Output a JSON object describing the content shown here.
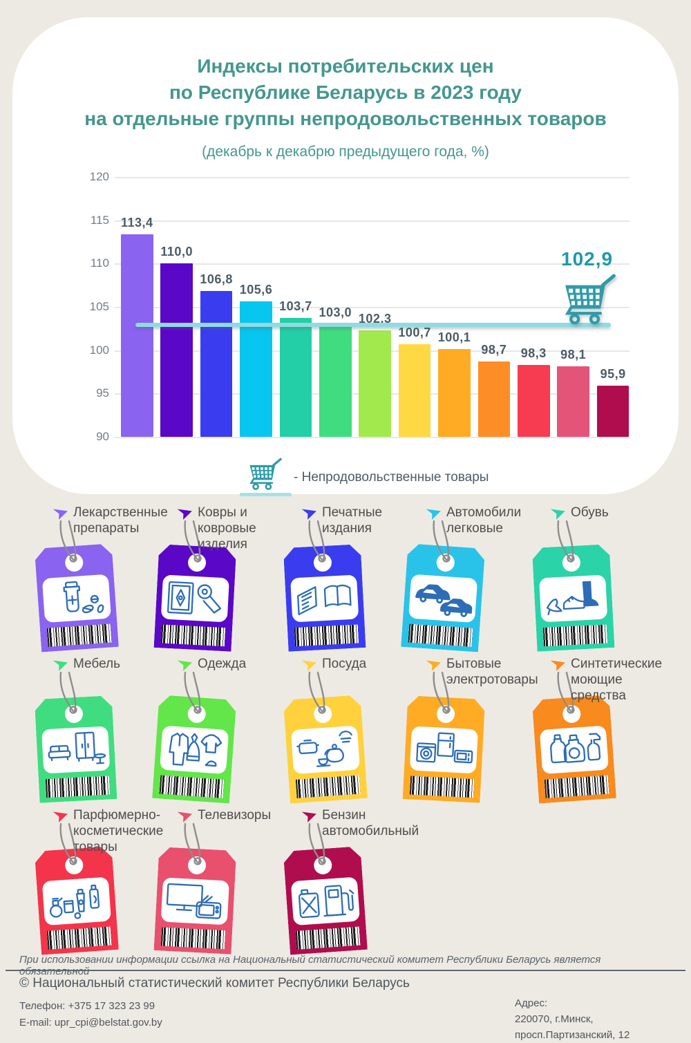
{
  "title": {
    "lines": [
      "Индексы потребительских цен",
      "по Республике Беларусь в 2023 году",
      "на отдельные группы непродовольственных товаров"
    ],
    "subtitle": "(декабрь к декабрю предыдущего года, %)"
  },
  "colors": {
    "background": "#edeae3",
    "panel": "#ffffff",
    "title_teal": "#43978f",
    "value_label_gray": "#4c5b66",
    "tick_gray": "#737d85",
    "reference_line": "#8edce2",
    "reference_label": "#1d9aaa",
    "cart_teal": "#2e9ba8",
    "icon_blue": "#2d6db5"
  },
  "chart_data": {
    "type": "bar",
    "title": "Индексы потребительских цен по Республике Беларусь в 2023 году на отдельные группы непродовольственных товаров",
    "subtitle": "(декабрь к декабрю предыдущего года, %)",
    "categories": [
      "Лекарственные препараты",
      "Ковры и ковровые изделия",
      "Печатные издания",
      "Автомобили легковые",
      "Обувь",
      "Мебель",
      "Одежда",
      "Посуда",
      "Бытовые электротовары",
      "Синтетические моющие средства",
      "Парфюмерно-косметические товары",
      "Телевизоры",
      "Бензин автомобильный"
    ],
    "values": [
      113.4,
      110.0,
      106.8,
      105.6,
      103.7,
      103.0,
      102.3,
      100.7,
      100.1,
      98.7,
      98.3,
      98.1,
      95.9
    ],
    "value_labels": [
      "113,4",
      "110,0",
      "106,8",
      "105,6",
      "103,7",
      "103,0",
      "102,3",
      "100,7",
      "100,1",
      "98,7",
      "98,3",
      "98,1",
      "95,9"
    ],
    "bar_colors": [
      "#8a63f0",
      "#5a07c8",
      "#3a3cf0",
      "#07c6f0",
      "#22cfa6",
      "#3fdd80",
      "#a2e94e",
      "#ffd944",
      "#ffab24",
      "#fd8d27",
      "#f73b50",
      "#e45479",
      "#b00d4e"
    ],
    "y_ticks": [
      120,
      115,
      110,
      105,
      100,
      95,
      90
    ],
    "ylim": [
      90,
      120
    ],
    "grid": true,
    "reference_line": {
      "value": 102.9,
      "label": "102,9"
    },
    "legend": {
      "icon": "shopping-cart-icon",
      "text": "- Непродовольственные товары",
      "position": "below-chart"
    }
  },
  "tags": [
    {
      "label": "Лекарственные препараты",
      "color": "#8a63f0",
      "icon": "medicine-icon"
    },
    {
      "label": "Ковры и ковровые изделия",
      "color": "#5a07c8",
      "icon": "carpet-icon"
    },
    {
      "label": "Печатные издания",
      "color": "#3a3cf0",
      "icon": "print-icon"
    },
    {
      "label": "Автомобили легковые",
      "color": "#29c3ea",
      "icon": "cars-icon"
    },
    {
      "label": "Обувь",
      "color": "#2bd3a8",
      "icon": "shoes-icon"
    },
    {
      "label": "Мебель",
      "color": "#3fdd80",
      "icon": "furniture-icon"
    },
    {
      "label": "Одежда",
      "color": "#62e649",
      "icon": "clothes-icon"
    },
    {
      "label": "Посуда",
      "color": "#ffd23d",
      "icon": "dishes-icon"
    },
    {
      "label": "Бытовые электротовары",
      "color": "#ffab24",
      "icon": "appliances-icon"
    },
    {
      "label": "Синтетические моющие средства",
      "color": "#f88a1e",
      "icon": "detergent-icon"
    },
    {
      "label": "Парфюмерно-косметические товары",
      "color": "#f4344a",
      "icon": "cosmetics-icon"
    },
    {
      "label": "Телевизоры",
      "color": "#e8506e",
      "icon": "tv-icon"
    },
    {
      "label": "Бензин автомобильный",
      "color": "#b00d4e",
      "icon": "fuel-icon"
    }
  ],
  "footer": {
    "disclaimer": "При использовании информации ссылка на Национальный статистический комитет Республики Беларусь является обязательной",
    "copyright": "© Национальный статистический комитет Республики Беларусь",
    "phone_label": "Телефон: +375 17 323 23 99",
    "email_label": "E-mail: upr_cpi@belstat.gov.by",
    "address_label": "Адрес:",
    "address_line1": "220070, г.Минск,",
    "address_line2": "просп.Партизанский, 12"
  }
}
